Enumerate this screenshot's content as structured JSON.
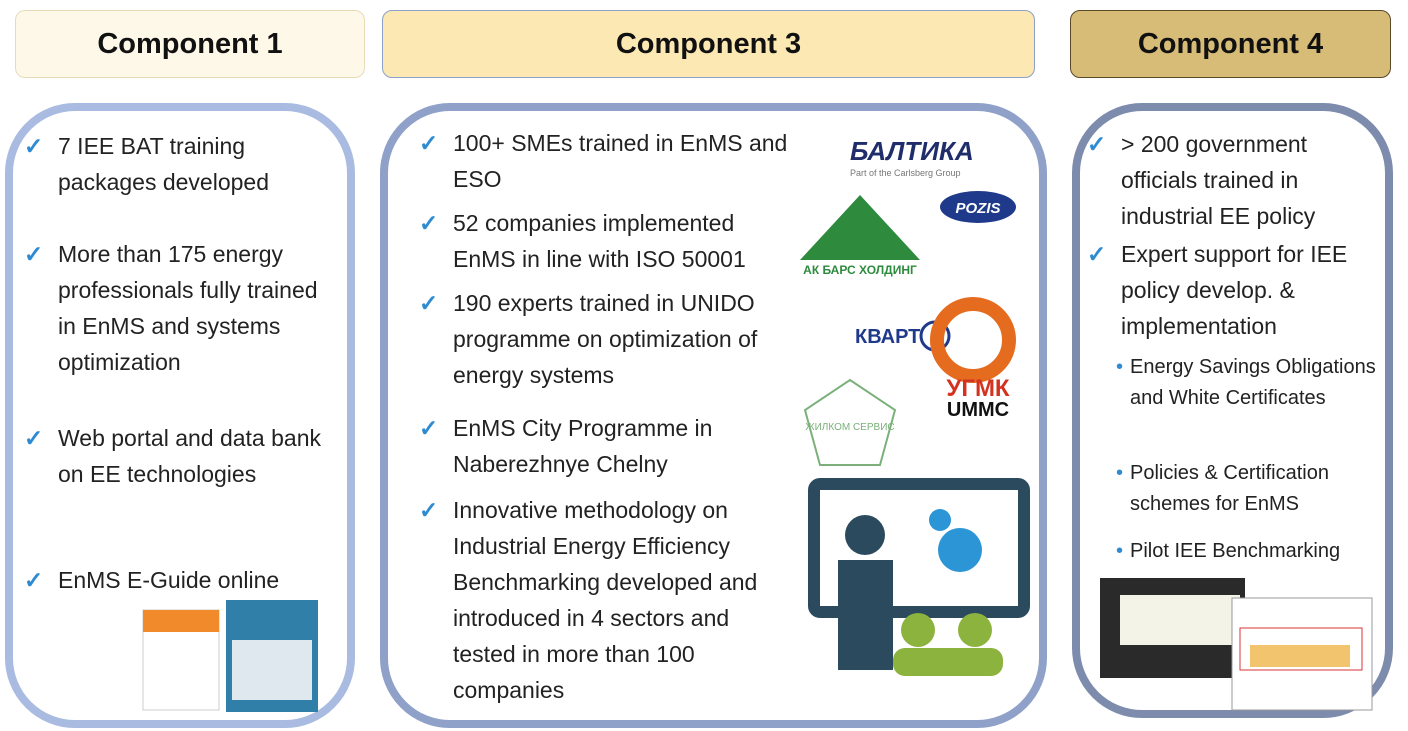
{
  "columns": [
    {
      "title": "Component 1",
      "items": [
        {
          "text": "7 IEE BAT training packages developed"
        },
        {
          "text": "More than 175 energy professionals fully trained in EnMS and systems optimization"
        },
        {
          "text": "Web portal and data bank on EE technologies"
        },
        {
          "text": "EnMS E-Guide online"
        }
      ],
      "subitems": []
    },
    {
      "title": "Component 3",
      "items": [
        {
          "text": "100+ SMEs trained in EnMS and ESO"
        },
        {
          "text": "52 companies implemented EnMS in line with ISO 50001"
        },
        {
          "text": "190 experts trained in UNIDO programme on optimization of energy systems"
        },
        {
          "text": "EnMS City Programme in Naberezhnye Chelny"
        },
        {
          "text": "Innovative methodology on Industrial Energy Efficiency Benchmarking developed and introduced in 4 sectors and tested in more than 100 companies"
        }
      ],
      "subitems": []
    },
    {
      "title": "Component 4",
      "items": [
        {
          "text": "> 200 government officials trained in industrial EE policy"
        },
        {
          "text": "Expert support for IEE policy develop. & implementation"
        }
      ],
      "subitems": [
        {
          "text": "Energy Savings Obligations and White Certificates"
        },
        {
          "text": "Policies & Certification schemes for EnMS"
        },
        {
          "text": "Pilot IEE Benchmarking"
        }
      ]
    }
  ],
  "logos": {
    "baltika": "БАЛТИКА",
    "baltika_sub": "Part of the Carlsberg Group",
    "pozis": "POZIS",
    "akbars": "АК БАРС ХОЛДИНГ",
    "kvart": "КВАРТ",
    "ugmk": "УГМК",
    "ummc": "UMMC",
    "zhilkom": "ЖИЛКОМ СЕРВИС"
  }
}
